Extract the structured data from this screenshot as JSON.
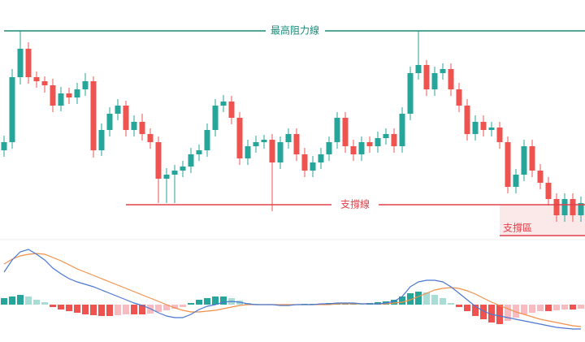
{
  "chart_data": [
    {
      "type": "candlestick",
      "up_color": "#26a69a",
      "down_color": "#ef5350",
      "ylim": [
        0,
        270
      ],
      "open": [
        115,
        125,
        205,
        240,
        205,
        200,
        195,
        170,
        185,
        180,
        190,
        200,
        115,
        140,
        160,
        170,
        140,
        150,
        135,
        125,
        80,
        85,
        90,
        95,
        110,
        115,
        140,
        170,
        175,
        155,
        105,
        120,
        125,
        128,
        100,
        125,
        135,
        110,
        90,
        100,
        110,
        125,
        155,
        120,
        110,
        125,
        120,
        130,
        135,
        120,
        160,
        210,
        220,
        190,
        210,
        215,
        190,
        170,
        135,
        150,
        140,
        143,
        125,
        70,
        85,
        120,
        90,
        75,
        55,
        35,
        55,
        35
      ],
      "high": [
        133,
        215,
        262,
        248,
        212,
        206,
        203,
        193,
        192,
        198,
        210,
        206,
        148,
        168,
        178,
        176,
        158,
        160,
        142,
        132,
        93,
        97,
        102,
        118,
        122,
        148,
        178,
        183,
        182,
        162,
        128,
        133,
        134,
        135,
        132,
        142,
        142,
        118,
        108,
        118,
        132,
        162,
        162,
        128,
        132,
        132,
        138,
        142,
        142,
        168,
        218,
        262,
        226,
        218,
        222,
        222,
        198,
        178,
        158,
        158,
        150,
        150,
        132,
        92,
        128,
        128,
        98,
        82,
        62,
        62,
        62,
        58
      ],
      "low": [
        107,
        117,
        196,
        197,
        192,
        186,
        162,
        163,
        172,
        172,
        182,
        106,
        108,
        132,
        152,
        132,
        132,
        127,
        117,
        50,
        50,
        50,
        82,
        87,
        102,
        107,
        132,
        162,
        147,
        97,
        97,
        112,
        117,
        40,
        92,
        117,
        102,
        82,
        82,
        92,
        102,
        117,
        112,
        102,
        102,
        112,
        112,
        122,
        112,
        112,
        152,
        202,
        182,
        182,
        202,
        182,
        162,
        127,
        127,
        132,
        132,
        117,
        62,
        62,
        77,
        82,
        67,
        47,
        27,
        27,
        27,
        27
      ],
      "close": [
        125,
        205,
        240,
        205,
        200,
        195,
        170,
        185,
        180,
        190,
        200,
        115,
        140,
        160,
        170,
        140,
        150,
        135,
        125,
        80,
        85,
        90,
        95,
        110,
        115,
        140,
        170,
        175,
        155,
        105,
        120,
        125,
        128,
        100,
        125,
        135,
        110,
        90,
        100,
        110,
        125,
        155,
        120,
        110,
        125,
        120,
        130,
        135,
        120,
        160,
        210,
        220,
        190,
        210,
        215,
        190,
        170,
        135,
        150,
        140,
        143,
        125,
        70,
        85,
        120,
        90,
        75,
        55,
        35,
        55,
        35,
        50
      ],
      "resistance": {
        "label": "最高阻力線",
        "value": 262,
        "color": "#1a8a78"
      },
      "support": {
        "label": "支撐線",
        "value": 48,
        "color": "#e0404a"
      },
      "support_zone": {
        "label": "支撐區",
        "range": [
          10,
          48
        ],
        "color": "#e0404a"
      }
    },
    {
      "type": "macd",
      "ylim": [
        -45,
        80
      ],
      "macd_color": "#4a78d0",
      "signal_color": "#f0904a",
      "macd": [
        40,
        55,
        65,
        68,
        62,
        55,
        45,
        38,
        32,
        28,
        25,
        22,
        18,
        14,
        10,
        6,
        2,
        -1,
        -5,
        -10,
        -14,
        -16,
        -16,
        -12,
        -6,
        -2,
        0,
        3,
        4,
        3,
        1,
        0,
        0,
        0,
        -1,
        -1,
        0,
        0,
        0,
        1,
        1,
        2,
        2,
        2,
        1,
        1,
        1,
        2,
        4,
        10,
        22,
        28,
        30,
        30,
        28,
        22,
        14,
        6,
        -2,
        -8,
        -12,
        -14,
        -16,
        -18,
        -20,
        -22,
        -24,
        -26,
        -28,
        -29,
        -30,
        -30
      ],
      "signal": [
        50,
        56,
        60,
        62,
        63,
        62,
        58,
        54,
        49,
        44,
        40,
        36,
        32,
        28,
        24,
        20,
        16,
        12,
        8,
        4,
        0,
        -4,
        -7,
        -9,
        -9,
        -8,
        -7,
        -5,
        -3,
        -1,
        0,
        0,
        0,
        0,
        0,
        0,
        0,
        0,
        0,
        0,
        0,
        1,
        1,
        1,
        1,
        1,
        1,
        1,
        2,
        3,
        6,
        10,
        14,
        18,
        20,
        21,
        20,
        17,
        13,
        8,
        3,
        -1,
        -5,
        -9,
        -12,
        -15,
        -18,
        -20,
        -22,
        -24,
        -26,
        -27
      ],
      "histogram": [
        8,
        10,
        12,
        10,
        6,
        3,
        -3,
        -6,
        -8,
        -10,
        -12,
        -13,
        -14,
        -14,
        -13,
        -12,
        -12,
        -12,
        -11,
        -9,
        -7,
        -5,
        -3,
        2,
        6,
        8,
        10,
        10,
        8,
        5,
        2,
        1,
        0,
        0,
        -1,
        -1,
        0,
        1,
        1,
        1,
        2,
        2,
        2,
        2,
        1,
        2,
        3,
        4,
        6,
        10,
        14,
        16,
        15,
        12,
        8,
        2,
        -3,
        -8,
        -14,
        -18,
        -22,
        -24,
        -20,
        -16,
        -12,
        -10,
        -8,
        -8,
        -7,
        -6,
        -6,
        -5
      ],
      "hist_colors": {
        "up_rising": "#26a69a",
        "up_falling": "#a8dcd4",
        "down_falling": "#ef5350",
        "down_rising": "#f8bcc0"
      }
    }
  ]
}
